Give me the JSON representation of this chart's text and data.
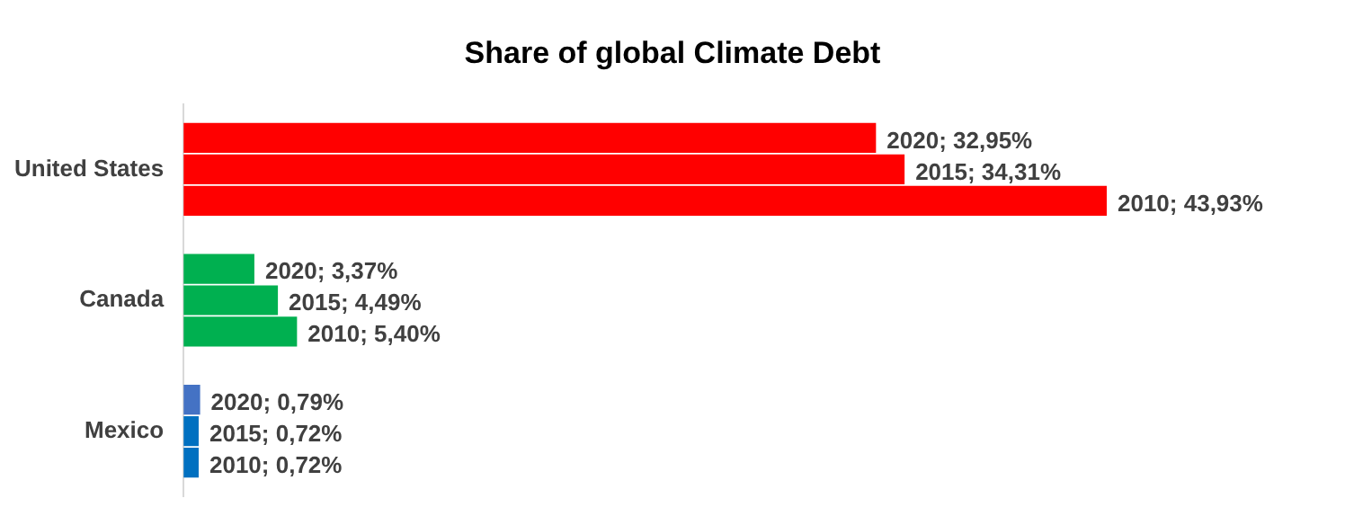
{
  "chart_data": {
    "type": "bar",
    "orientation": "horizontal",
    "title": "Share of global Climate Debt",
    "categories": [
      "United States",
      "Canada",
      "Mexico"
    ],
    "series": [
      {
        "colors": [
          "#ff0000",
          "#00b050",
          "#4472c4"
        ],
        "values": [
          32.95,
          3.37,
          0.79
        ],
        "value_labels": [
          "2020; 32,95%",
          "2020; 3,37%",
          "2020; 0,79%"
        ]
      },
      {
        "colors": [
          "#ff0000",
          "#00b050",
          "#0070c0"
        ],
        "values": [
          34.31,
          4.49,
          0.72
        ],
        "value_labels": [
          "2015; 34,31%",
          "2015; 4,49%",
          "2015; 0,72%"
        ]
      },
      {
        "colors": [
          "#ff0000",
          "#00b050",
          "#0070c0"
        ],
        "values": [
          43.93,
          5.4,
          0.72
        ],
        "value_labels": [
          "2010; 43,93%",
          "2010; 5,40%",
          "2010; 0,72%"
        ]
      }
    ],
    "legend": false,
    "tick_labels": "y"
  }
}
